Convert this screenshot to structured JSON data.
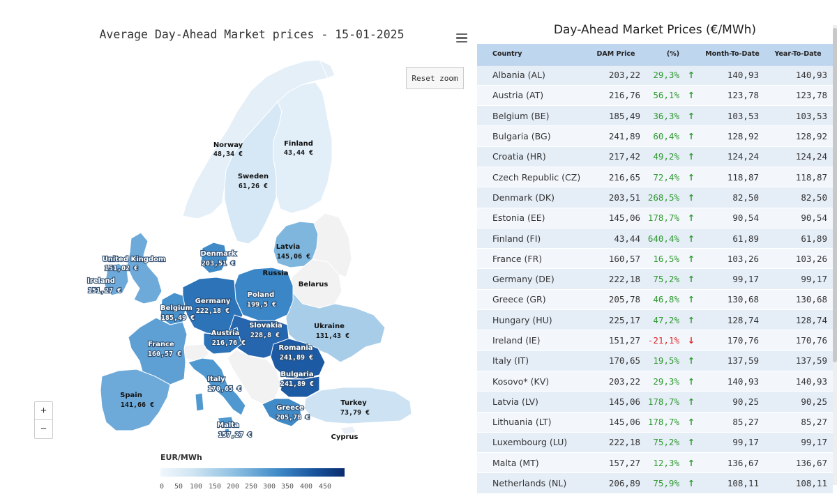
{
  "map": {
    "title": "Average Day-Ahead Market prices - 15-01-2025",
    "reset_zoom_label": "Reset zoom",
    "zoom_in_label": "+",
    "zoom_out_label": "−",
    "menu_icon": "hamburger-menu-icon",
    "legend_title": "EUR/MWh",
    "legend_ticks": [
      "0",
      "50",
      "100",
      "150",
      "200",
      "250",
      "300",
      "350",
      "400",
      "450"
    ],
    "legend_colors": [
      "#f0f7fc",
      "#cfe4f2",
      "#8ec0e2",
      "#3f8ac7",
      "#17539c",
      "#0b2c6e"
    ],
    "labels": [
      {
        "id": "norway",
        "name": "Norway",
        "value": "48,34 €",
        "price": 48.34
      },
      {
        "id": "finland",
        "name": "Finland",
        "value": "43,44 €",
        "price": 43.44
      },
      {
        "id": "sweden",
        "name": "Sweden",
        "value": "61,26 €",
        "price": 61.26
      },
      {
        "id": "uk",
        "name": "United Kingdom",
        "value": "151,02 €",
        "price": 151.02
      },
      {
        "id": "ireland",
        "name": "Ireland",
        "value": "151,27 €",
        "price": 151.27
      },
      {
        "id": "denmark",
        "name": "Denmark",
        "value": "203,51 €",
        "price": 203.51
      },
      {
        "id": "latvia",
        "name": "Latvia",
        "value": "145,06 €",
        "price": 145.06
      },
      {
        "id": "russia",
        "name": "Russia",
        "value": "",
        "price": null
      },
      {
        "id": "belarus",
        "name": "Belarus",
        "value": "",
        "price": null
      },
      {
        "id": "poland",
        "name": "Poland",
        "value": "199,5 €",
        "price": 199.5
      },
      {
        "id": "germany",
        "name": "Germany",
        "value": "222,18 €",
        "price": 222.18
      },
      {
        "id": "belgium",
        "name": "Belgium",
        "value": "185,49 €",
        "price": 185.49
      },
      {
        "id": "ukraine",
        "name": "Ukraine",
        "value": "131,43 €",
        "price": 131.43
      },
      {
        "id": "slovakia",
        "name": "Slovakia",
        "value": "228,8 €",
        "price": 228.8
      },
      {
        "id": "austria",
        "name": "Austria",
        "value": "216,76 €",
        "price": 216.76
      },
      {
        "id": "france",
        "name": "France",
        "value": "160,57 €",
        "price": 160.57
      },
      {
        "id": "romania",
        "name": "Romania",
        "value": "241,89 €",
        "price": 241.89
      },
      {
        "id": "bulgaria",
        "name": "Bulgaria",
        "value": "241,89 €",
        "price": 241.89
      },
      {
        "id": "italy",
        "name": "Italy",
        "value": "170,65 €",
        "price": 170.65
      },
      {
        "id": "spain",
        "name": "Spain",
        "value": "141,66 €",
        "price": 141.66
      },
      {
        "id": "turkey",
        "name": "Turkey",
        "value": "73,79 €",
        "price": 73.79
      },
      {
        "id": "greece",
        "name": "Greece",
        "value": "205,78 €",
        "price": 205.78
      },
      {
        "id": "malta",
        "name": "Malta",
        "value": "157,27 €",
        "price": 157.27
      },
      {
        "id": "cyprus",
        "name": "Cyprus",
        "value": "",
        "price": null
      }
    ]
  },
  "table": {
    "title": "Day-Ahead Market Prices (€/MWh)",
    "headers": [
      "Country",
      "DAM Price",
      "(%)",
      "Month-To-Date",
      "Year-To-Date"
    ],
    "rows": [
      {
        "country": "Albania (AL)",
        "dam": "203,22",
        "pct": "29,3%",
        "dir": "up",
        "mtd": "140,93",
        "ytd": "140,93"
      },
      {
        "country": "Austria (AT)",
        "dam": "216,76",
        "pct": "56,1%",
        "dir": "up",
        "mtd": "123,78",
        "ytd": "123,78"
      },
      {
        "country": "Belgium (BE)",
        "dam": "185,49",
        "pct": "36,3%",
        "dir": "up",
        "mtd": "103,53",
        "ytd": "103,53"
      },
      {
        "country": "Bulgaria (BG)",
        "dam": "241,89",
        "pct": "60,4%",
        "dir": "up",
        "mtd": "128,92",
        "ytd": "128,92"
      },
      {
        "country": "Croatia (HR)",
        "dam": "217,42",
        "pct": "49,2%",
        "dir": "up",
        "mtd": "124,24",
        "ytd": "124,24"
      },
      {
        "country": "Czech Republic (CZ)",
        "dam": "216,65",
        "pct": "72,4%",
        "dir": "up",
        "mtd": "118,87",
        "ytd": "118,87"
      },
      {
        "country": "Denmark (DK)",
        "dam": "203,51",
        "pct": "268,5%",
        "dir": "up",
        "mtd": "82,50",
        "ytd": "82,50"
      },
      {
        "country": "Estonia (EE)",
        "dam": "145,06",
        "pct": "178,7%",
        "dir": "up",
        "mtd": "90,54",
        "ytd": "90,54"
      },
      {
        "country": "Finland (FI)",
        "dam": "43,44",
        "pct": "640,4%",
        "dir": "up",
        "mtd": "61,89",
        "ytd": "61,89"
      },
      {
        "country": "France (FR)",
        "dam": "160,57",
        "pct": "16,5%",
        "dir": "up",
        "mtd": "103,26",
        "ytd": "103,26"
      },
      {
        "country": "Germany (DE)",
        "dam": "222,18",
        "pct": "75,2%",
        "dir": "up",
        "mtd": "99,17",
        "ytd": "99,17"
      },
      {
        "country": "Greece (GR)",
        "dam": "205,78",
        "pct": "46,8%",
        "dir": "up",
        "mtd": "130,68",
        "ytd": "130,68"
      },
      {
        "country": "Hungary (HU)",
        "dam": "225,17",
        "pct": "47,2%",
        "dir": "up",
        "mtd": "128,74",
        "ytd": "128,74"
      },
      {
        "country": "Ireland (IE)",
        "dam": "151,27",
        "pct": "-21,1%",
        "dir": "down",
        "mtd": "170,76",
        "ytd": "170,76"
      },
      {
        "country": "Italy (IT)",
        "dam": "170,65",
        "pct": "19,5%",
        "dir": "up",
        "mtd": "137,59",
        "ytd": "137,59"
      },
      {
        "country": "Kosovo* (KV)",
        "dam": "203,22",
        "pct": "29,3%",
        "dir": "up",
        "mtd": "140,93",
        "ytd": "140,93"
      },
      {
        "country": "Latvia (LV)",
        "dam": "145,06",
        "pct": "178,7%",
        "dir": "up",
        "mtd": "90,25",
        "ytd": "90,25"
      },
      {
        "country": "Lithuania (LT)",
        "dam": "145,06",
        "pct": "178,7%",
        "dir": "up",
        "mtd": "85,27",
        "ytd": "85,27"
      },
      {
        "country": "Luxembourg (LU)",
        "dam": "222,18",
        "pct": "75,2%",
        "dir": "up",
        "mtd": "99,17",
        "ytd": "99,17"
      },
      {
        "country": "Malta (MT)",
        "dam": "157,27",
        "pct": "12,3%",
        "dir": "up",
        "mtd": "136,67",
        "ytd": "136,67"
      },
      {
        "country": "Netherlands (NL)",
        "dam": "206,89",
        "pct": "75,9%",
        "dir": "up",
        "mtd": "108,11",
        "ytd": "108,11"
      }
    ],
    "up_color": "#2f9a2f",
    "down_color": "#e02222",
    "up_icon": "arrow-up-icon",
    "down_icon": "arrow-down-icon"
  }
}
